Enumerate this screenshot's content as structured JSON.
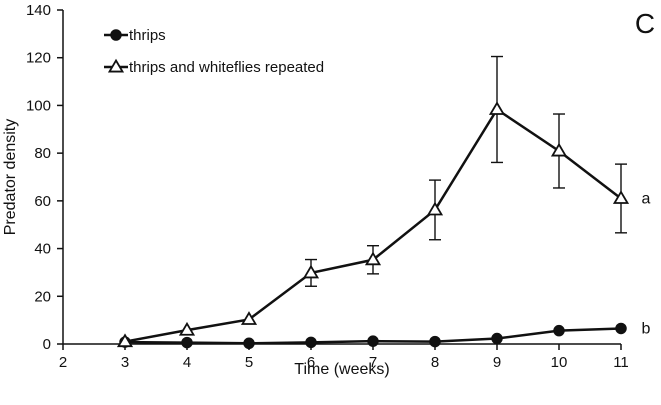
{
  "chart_data": {
    "type": "line",
    "panel_label": "C",
    "xlabel": "Time (weeks)",
    "ylabel": "Predator density",
    "xlim": [
      2,
      11
    ],
    "ylim": [
      0,
      140
    ],
    "x_ticks": [
      2,
      3,
      4,
      5,
      6,
      7,
      8,
      9,
      10,
      11
    ],
    "y_ticks": [
      0,
      20,
      40,
      60,
      80,
      100,
      120,
      140
    ],
    "grid": false,
    "legend_position": "top-left",
    "series": [
      {
        "name": "thrips",
        "marker": "filled-circle",
        "color": "#111111",
        "significance_label": "b",
        "x": [
          3,
          4,
          5,
          6,
          7,
          8,
          9,
          10,
          11
        ],
        "y": [
          0.8,
          0.6,
          0.3,
          0.7,
          1.2,
          1.0,
          2.3,
          5.6,
          6.5
        ],
        "error": [
          0,
          0,
          0,
          0,
          0,
          0,
          0,
          0,
          0
        ]
      },
      {
        "name": "thrips and whiteflies repeated",
        "marker": "open-triangle",
        "color": "#111111",
        "significance_label": "a",
        "x": [
          3,
          4,
          5,
          6,
          7,
          8,
          9,
          10,
          11
        ],
        "y": [
          1.0,
          5.8,
          10.3,
          29.8,
          35.3,
          56.2,
          98.3,
          80.9,
          61.0
        ],
        "error": [
          0,
          0,
          0,
          5.6,
          5.9,
          12.5,
          22.2,
          15.5,
          14.4
        ]
      }
    ]
  }
}
